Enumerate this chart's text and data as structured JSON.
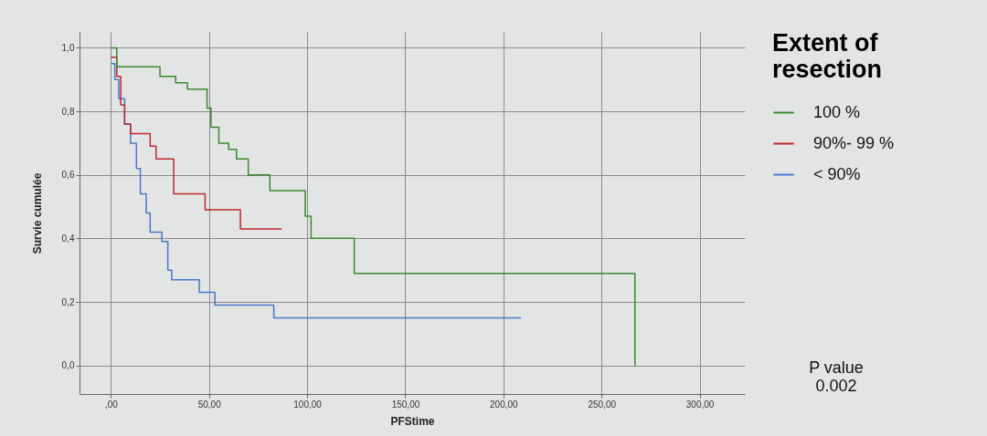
{
  "chart_data": {
    "type": "step",
    "xlabel": "PFStime",
    "ylabel": "Survie cumulée",
    "legend_title": "Extent of resection",
    "legend": "right",
    "grid": true,
    "annotations": [
      "P value 0.002"
    ],
    "xlim": [
      -16,
      323
    ],
    "ylim": [
      -0.09,
      1.05
    ],
    "xticks": [
      {
        "value": 0,
        "label": ",00"
      },
      {
        "value": 50,
        "label": "50,00"
      },
      {
        "value": 100,
        "label": "100,00"
      },
      {
        "value": 150,
        "label": "150,00"
      },
      {
        "value": 200,
        "label": "200,00"
      },
      {
        "value": 250,
        "label": "250,00"
      },
      {
        "value": 300,
        "label": "300,00"
      }
    ],
    "yticks": [
      {
        "value": 0,
        "label": "0,0"
      },
      {
        "value": 0.2,
        "label": "0,2"
      },
      {
        "value": 0.4,
        "label": "0,4"
      },
      {
        "value": 0.6,
        "label": "0,6"
      },
      {
        "value": 0.8,
        "label": "0,8"
      },
      {
        "value": 1,
        "label": "1,0"
      }
    ],
    "series": [
      {
        "name": "100 %",
        "color": "#3a8a2e",
        "x": [
          0,
          3,
          25,
          33,
          39,
          49,
          51,
          55,
          60,
          64,
          70,
          81,
          99,
          102,
          124,
          267
        ],
        "values": [
          1.0,
          0.94,
          0.91,
          0.89,
          0.87,
          0.81,
          0.75,
          0.7,
          0.68,
          0.65,
          0.6,
          0.55,
          0.47,
          0.4,
          0.29,
          0.0
        ]
      },
      {
        "name": "90%- 99 %",
        "color": "#c0282f",
        "x": [
          0,
          3,
          5,
          7,
          10,
          20,
          23,
          32,
          48,
          66,
          87
        ],
        "values": [
          0.97,
          0.91,
          0.82,
          0.76,
          0.73,
          0.69,
          0.65,
          0.54,
          0.49,
          0.43,
          0.43
        ]
      },
      {
        "name": "< 90%",
        "color": "#4a78c8",
        "x": [
          0,
          2,
          4,
          7,
          10,
          13,
          15,
          18,
          20,
          26,
          29,
          31,
          45,
          53,
          83,
          209
        ],
        "values": [
          0.95,
          0.9,
          0.84,
          0.76,
          0.7,
          0.62,
          0.54,
          0.48,
          0.42,
          0.39,
          0.3,
          0.27,
          0.23,
          0.19,
          0.15,
          0.15
        ]
      }
    ]
  }
}
